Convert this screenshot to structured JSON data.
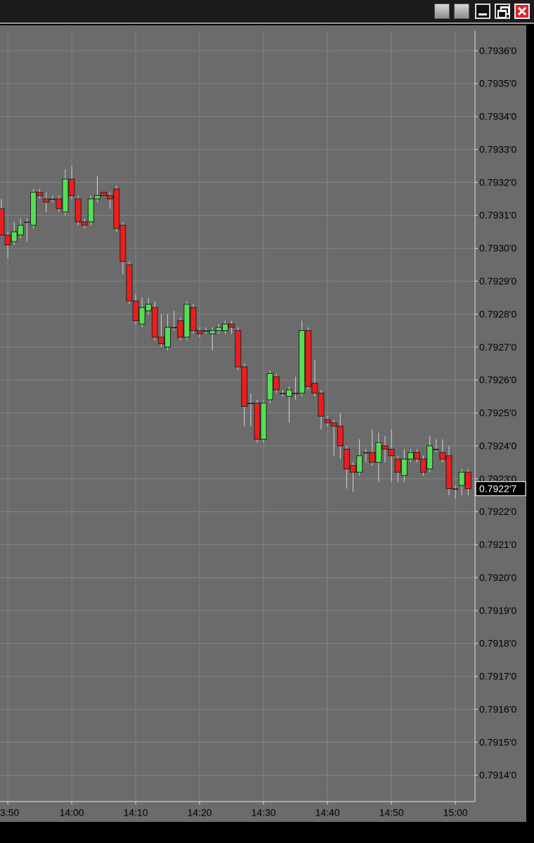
{
  "chart_data": {
    "type": "candlestick",
    "categories": [
      null,
      "3:50",
      null,
      null,
      null,
      null,
      null,
      null,
      null,
      null,
      null,
      "14:00",
      null,
      null,
      null,
      null,
      null,
      null,
      null,
      null,
      null,
      "14:10",
      null,
      null,
      null,
      null,
      null,
      null,
      null,
      null,
      null,
      "14:20",
      null,
      null,
      null,
      null,
      null,
      null,
      null,
      null,
      null,
      "14:30",
      null,
      null,
      null,
      null,
      null,
      null,
      null,
      null,
      null,
      "14:40",
      null,
      null,
      null,
      null,
      null,
      null,
      null,
      null,
      null,
      "14:50",
      null,
      null,
      null,
      null,
      null,
      null,
      null,
      null,
      null,
      "15:00",
      null,
      null
    ],
    "open": [
      0.79312,
      0.79304,
      0.79302,
      0.79304,
      0.79308,
      0.79307,
      0.79317,
      0.79315,
      0.79315,
      0.79315,
      0.79311,
      0.79321,
      0.79315,
      0.79308,
      0.79308,
      0.79315,
      0.79317,
      0.79316,
      0.79318,
      0.79307,
      0.79295,
      0.79284,
      0.79277,
      0.79281,
      0.79282,
      0.79273,
      0.7927,
      0.79276,
      0.79278,
      0.79273,
      0.79282,
      0.79275,
      0.79275,
      0.79274,
      0.79275,
      0.79275,
      0.79277,
      0.79275,
      0.79264,
      0.79253,
      0.79253,
      0.79242,
      0.79254,
      0.79261,
      0.79256,
      0.79255,
      0.79256,
      0.79256,
      0.79275,
      0.79259,
      0.79256,
      0.79248,
      0.79247,
      0.79246,
      0.79239,
      0.79234,
      0.79232,
      0.79238,
      0.79238,
      0.79235,
      0.7924,
      0.79239,
      0.79236,
      0.79231,
      0.79236,
      0.79238,
      0.79236,
      0.79233,
      0.79239,
      0.79238,
      0.79237,
      0.79227,
      0.79228,
      0.79232
    ],
    "high": [
      0.79315,
      0.79305,
      0.79308,
      0.79309,
      0.79309,
      0.79318,
      0.79318,
      0.79317,
      0.79316,
      0.79316,
      0.79324,
      0.79325,
      0.79316,
      0.79309,
      0.79316,
      0.79322,
      0.79317,
      0.79317,
      0.79319,
      0.79308,
      0.79296,
      0.79286,
      0.79285,
      0.79285,
      0.79284,
      0.7928,
      0.7928,
      0.79281,
      0.79279,
      0.79284,
      0.79283,
      0.79276,
      0.79276,
      0.79276,
      0.79277,
      0.79278,
      0.79278,
      0.79276,
      0.79265,
      0.79256,
      0.79254,
      0.79254,
      0.79263,
      0.79262,
      0.79257,
      0.79258,
      0.79261,
      0.79278,
      0.79276,
      0.79266,
      0.79257,
      0.79249,
      0.79248,
      0.7925,
      0.7924,
      0.79235,
      0.79242,
      0.79239,
      0.79245,
      0.79244,
      0.79243,
      0.79245,
      0.79237,
      0.79239,
      0.79239,
      0.79239,
      0.79237,
      0.79243,
      0.79242,
      0.79242,
      0.7924,
      0.79228,
      0.79233,
      0.79233
    ],
    "low": [
      0.79304,
      0.79297,
      0.79301,
      0.79303,
      0.79302,
      0.79306,
      0.79315,
      0.79311,
      0.79314,
      0.79311,
      0.7931,
      0.79315,
      0.79307,
      0.79306,
      0.79307,
      0.79314,
      0.79316,
      0.79312,
      0.79305,
      0.79292,
      0.79283,
      0.79277,
      0.79276,
      0.7928,
      0.79272,
      0.7927,
      0.79269,
      0.79275,
      0.79272,
      0.79272,
      0.79274,
      0.79273,
      0.79274,
      0.79269,
      0.79274,
      0.79274,
      0.79274,
      0.79263,
      0.79246,
      0.79246,
      0.79241,
      0.79241,
      0.79253,
      0.79256,
      0.79255,
      0.79247,
      0.79254,
      0.79255,
      0.79257,
      0.79255,
      0.79245,
      0.79246,
      0.79237,
      0.79236,
      0.79227,
      0.79226,
      0.79231,
      0.79235,
      0.79234,
      0.79229,
      0.79235,
      0.79229,
      0.79229,
      0.79229,
      0.79235,
      0.79235,
      0.79231,
      0.79232,
      0.79238,
      0.79235,
      0.79225,
      0.79224,
      0.79225,
      0.79225
    ],
    "close": [
      0.79304,
      0.79301,
      0.79305,
      0.79307,
      0.79308,
      0.79317,
      0.79316,
      0.79314,
      0.79315,
      0.79312,
      0.79321,
      0.79316,
      0.79308,
      0.79307,
      0.79315,
      0.79316,
      0.79316,
      0.79315,
      0.79306,
      0.79296,
      0.79284,
      0.79278,
      0.79282,
      0.79283,
      0.79273,
      0.79271,
      0.79276,
      0.79276,
      0.79273,
      0.79283,
      0.79275,
      0.79274,
      0.79275,
      0.79275,
      0.79276,
      0.79277,
      0.79276,
      0.79264,
      0.79252,
      0.79253,
      0.79242,
      0.79253,
      0.79262,
      0.79257,
      0.79256,
      0.79257,
      0.79256,
      0.79275,
      0.79258,
      0.79256,
      0.79249,
      0.79247,
      0.79246,
      0.7924,
      0.79233,
      0.79232,
      0.79237,
      0.79238,
      0.79235,
      0.79241,
      0.79239,
      0.79237,
      0.79232,
      0.79236,
      0.79238,
      0.79236,
      0.79232,
      0.7924,
      0.79239,
      0.79236,
      0.79227,
      0.79227,
      0.79232,
      0.79227
    ],
    "up_color": "#52e052",
    "down_color": "#ee1c1c",
    "ylim": [
      0.79132,
      0.79366
    ],
    "yticks": [
      {
        "value": 0.7914,
        "label": "0.7914'0"
      },
      {
        "value": 0.7915,
        "label": "0.7915'0"
      },
      {
        "value": 0.7916,
        "label": "0.7916'0"
      },
      {
        "value": 0.7917,
        "label": "0.7917'0"
      },
      {
        "value": 0.7918,
        "label": "0.7918'0"
      },
      {
        "value": 0.7919,
        "label": "0.7919'0"
      },
      {
        "value": 0.792,
        "label": "0.7920'0"
      },
      {
        "value": 0.7921,
        "label": "0.7921'0"
      },
      {
        "value": 0.7922,
        "label": "0.7922'0"
      },
      {
        "value": 0.7923,
        "label": "0.7923'0"
      },
      {
        "value": 0.7924,
        "label": "0.7924'0"
      },
      {
        "value": 0.7925,
        "label": "0.7925'0"
      },
      {
        "value": 0.7926,
        "label": "0.7926'0"
      },
      {
        "value": 0.7927,
        "label": "0.7927'0"
      },
      {
        "value": 0.7928,
        "label": "0.7928'0"
      },
      {
        "value": 0.7929,
        "label": "0.7929'0"
      },
      {
        "value": 0.793,
        "label": "0.7930'0"
      },
      {
        "value": 0.7931,
        "label": "0.7931'0"
      },
      {
        "value": 0.7932,
        "label": "0.7932'0"
      },
      {
        "value": 0.7933,
        "label": "0.7933'0"
      },
      {
        "value": 0.7934,
        "label": "0.7934'0"
      },
      {
        "value": 0.7935,
        "label": "0.7935'0"
      },
      {
        "value": 0.7936,
        "label": "0.7936'0"
      }
    ],
    "last_price": {
      "value": 0.79227,
      "label": "0.7922'7"
    },
    "grid": true
  }
}
